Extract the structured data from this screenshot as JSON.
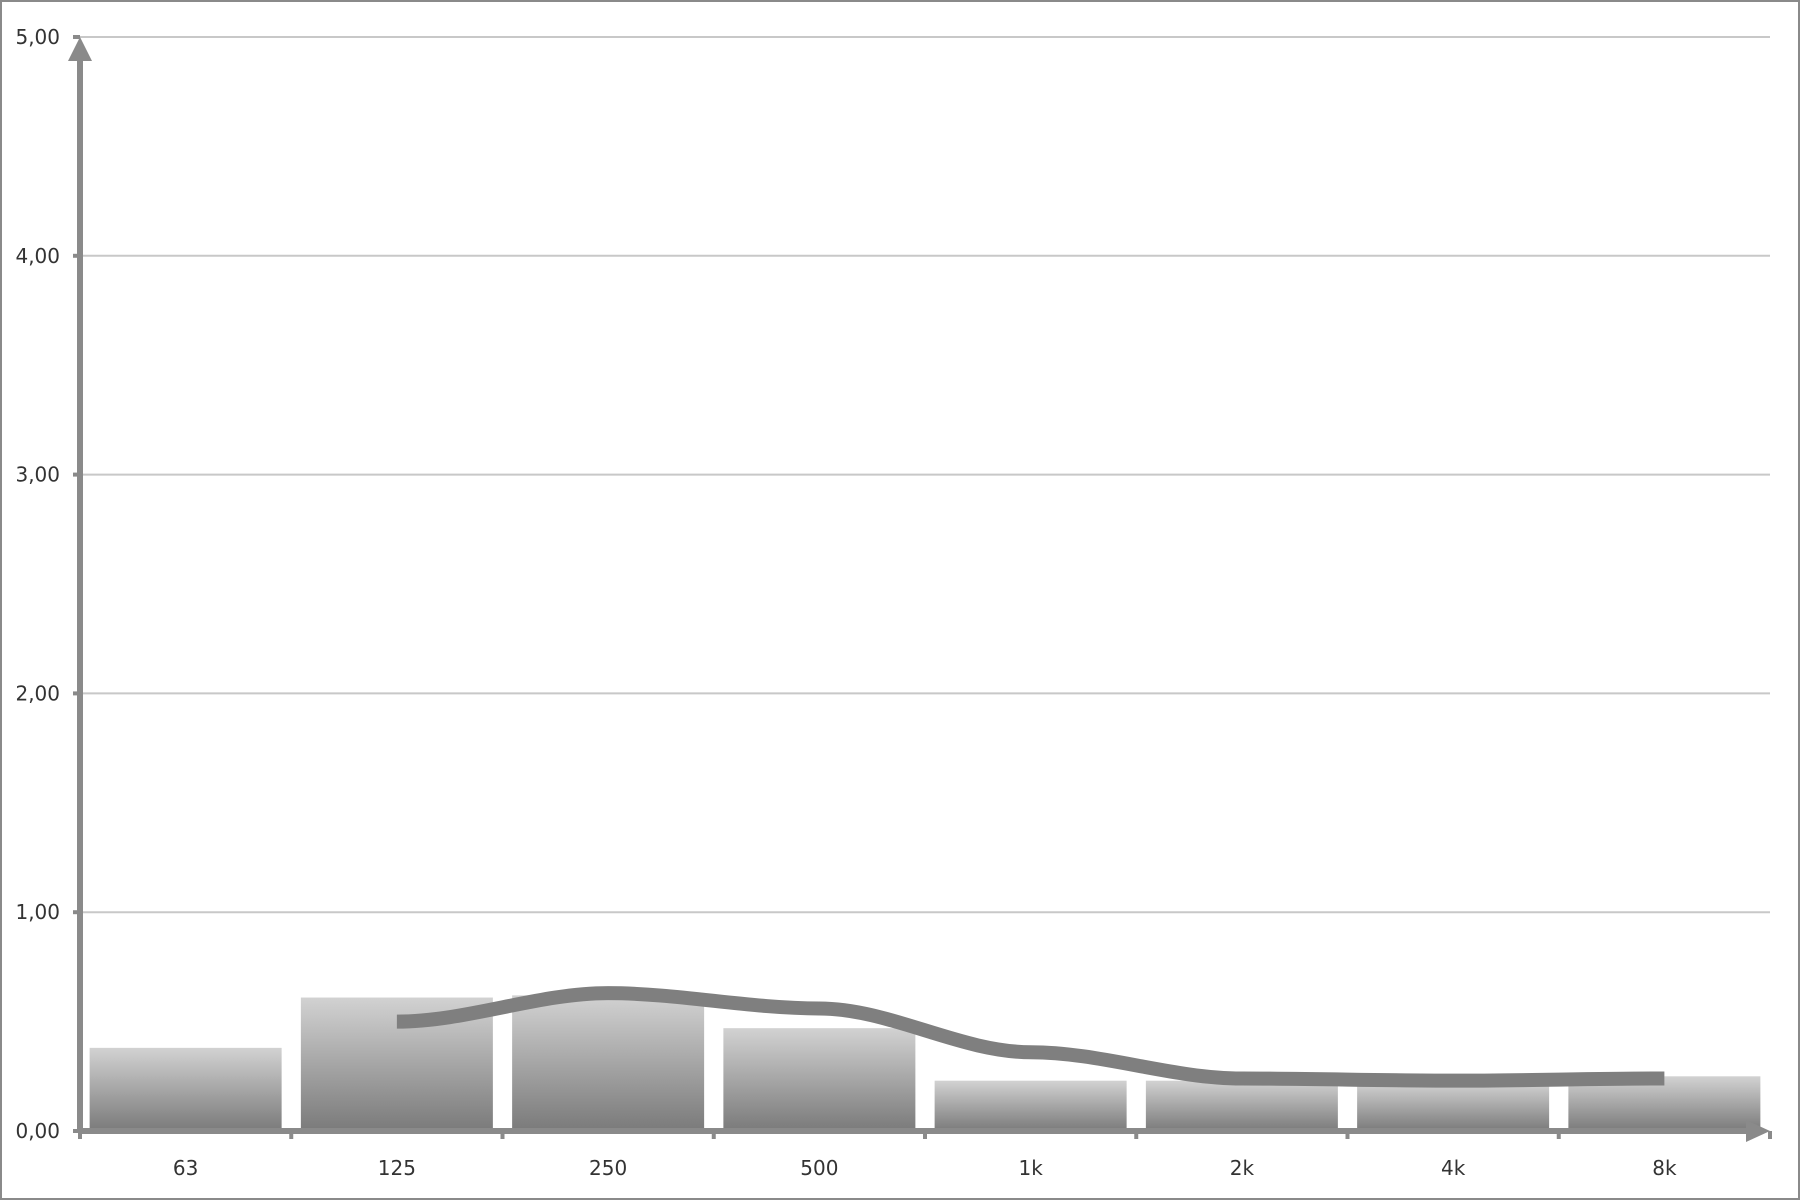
{
  "chart_data": {
    "type": "bar",
    "title": "",
    "xlabel": "",
    "ylabel": "",
    "categories": [
      "63",
      "125",
      "250",
      "500",
      "1k",
      "2k",
      "4k",
      "8k"
    ],
    "series": [
      {
        "type": "bar",
        "values": [
          0.38,
          0.61,
          0.62,
          0.47,
          0.23,
          0.23,
          0.22,
          0.25
        ]
      },
      {
        "type": "line",
        "values": [
          null,
          0.5,
          0.63,
          0.56,
          0.36,
          0.24,
          0.23,
          0.24
        ]
      }
    ],
    "yticks": [
      "0,00",
      "1,00",
      "2,00",
      "3,00",
      "4,00",
      "5,00"
    ],
    "ylim": [
      0,
      5
    ],
    "grid": true,
    "legend": "none"
  },
  "colors": {
    "axis": "#8a8a8a",
    "grid": "#c8c8c8",
    "line": "#7f7f7f",
    "bar_top": "#d2d2d2",
    "bar_bottom": "#7a7a7a"
  }
}
